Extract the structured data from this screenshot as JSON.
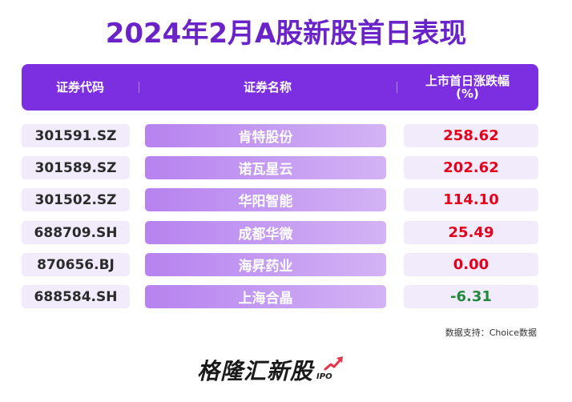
{
  "title": "2024年2月A股新股首日表现",
  "header": {
    "code": "证券代码",
    "name": "证券名称",
    "change": "上市首日涨跌幅\n(%)"
  },
  "rows": [
    {
      "code": "301591.SZ",
      "name": "肯特股份",
      "change": "258.62",
      "color": "#e5001c"
    },
    {
      "code": "301589.SZ",
      "name": "诺瓦星云",
      "change": "202.62",
      "color": "#e5001c"
    },
    {
      "code": "301502.SZ",
      "name": "华阳智能",
      "change": "114.10",
      "color": "#e5001c"
    },
    {
      "code": "688709.SH",
      "name": "成都华微",
      "change": "25.49",
      "color": "#e5001c"
    },
    {
      "code": "870656.BJ",
      "name": "海昇药业",
      "change": "0.00",
      "color": "#e5001c"
    },
    {
      "code": "688584.SH",
      "name": "上海合晶",
      "change": "-6.31",
      "color": "#1f8a3a"
    }
  ],
  "source": "数据支持：Choice数据",
  "brand": {
    "main": "格隆汇新股",
    "sub": "IPO"
  },
  "colors": {
    "accent": "#7c2fe0",
    "title": "#6a23c8",
    "up": "#e5001c",
    "down": "#1f8a3a"
  }
}
